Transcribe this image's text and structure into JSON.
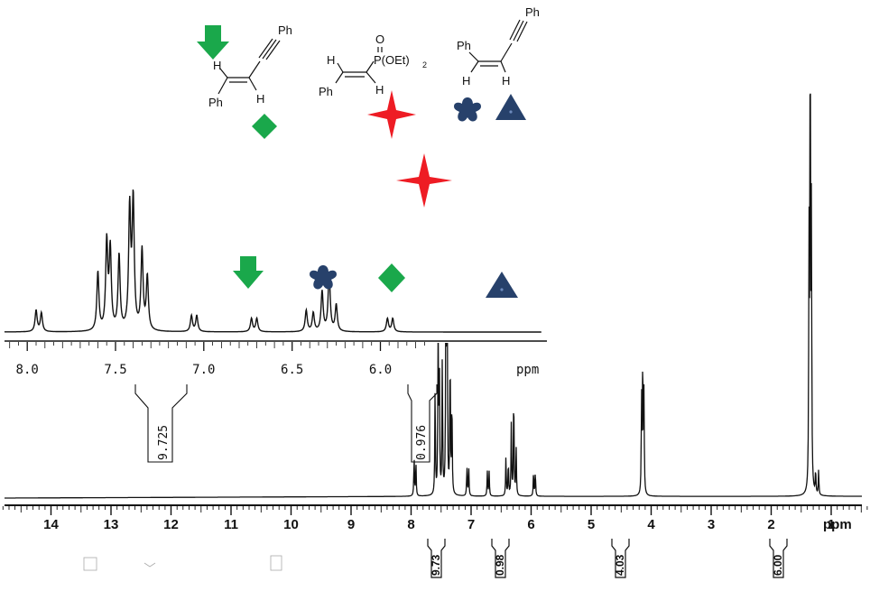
{
  "chart_data": [
    {
      "type": "line",
      "title": "",
      "xlabel": "ppm",
      "ylabel": "",
      "x_reversed": true,
      "xlim": [
        14.9,
        0.1
      ],
      "ticks": [
        "14",
        "13",
        "12",
        "11",
        "10",
        "9",
        "8",
        "7",
        "6",
        "5",
        "4",
        "3",
        "2",
        "1"
      ],
      "unit_label": "ppm",
      "peaks": [
        {
          "ppm": 7.95,
          "height": 0.08
        },
        {
          "ppm": 7.92,
          "height": 0.07
        },
        {
          "ppm": 7.6,
          "height": 0.22
        },
        {
          "ppm": 7.55,
          "height": 0.33
        },
        {
          "ppm": 7.53,
          "height": 0.3
        },
        {
          "ppm": 7.48,
          "height": 0.28
        },
        {
          "ppm": 7.42,
          "height": 0.45
        },
        {
          "ppm": 7.4,
          "height": 0.48
        },
        {
          "ppm": 7.35,
          "height": 0.3
        },
        {
          "ppm": 7.32,
          "height": 0.2
        },
        {
          "ppm": 7.07,
          "height": 0.06
        },
        {
          "ppm": 7.04,
          "height": 0.06
        },
        {
          "ppm": 6.73,
          "height": 0.05
        },
        {
          "ppm": 6.7,
          "height": 0.05
        },
        {
          "ppm": 6.42,
          "height": 0.08
        },
        {
          "ppm": 6.38,
          "height": 0.07
        },
        {
          "ppm": 6.33,
          "height": 0.15
        },
        {
          "ppm": 6.29,
          "height": 0.22
        },
        {
          "ppm": 6.25,
          "height": 0.1
        },
        {
          "ppm": 5.96,
          "height": 0.05
        },
        {
          "ppm": 5.93,
          "height": 0.05
        },
        {
          "ppm": 4.16,
          "height": 0.2
        },
        {
          "ppm": 4.14,
          "height": 0.28
        },
        {
          "ppm": 4.12,
          "height": 0.2
        },
        {
          "ppm": 1.37,
          "height": 0.5
        },
        {
          "ppm": 1.35,
          "height": 1.0
        },
        {
          "ppm": 1.33,
          "height": 0.55
        },
        {
          "ppm": 1.26,
          "height": 0.05
        },
        {
          "ppm": 1.21,
          "height": 0.05
        }
      ],
      "integrations": [
        {
          "label": "9.73",
          "ppm": 7.4
        },
        {
          "label": "0.98",
          "ppm": 6.3
        },
        {
          "label": "4.03",
          "ppm": 4.14
        },
        {
          "label": "6.00",
          "ppm": 1.35
        }
      ]
    },
    {
      "type": "line",
      "title": "",
      "xlabel": "ppm",
      "ylabel": "",
      "x_reversed": true,
      "xlim": [
        8.1,
        5.7
      ],
      "ticks": [
        "8.0",
        "7.5",
        "7.0",
        "6.5",
        "6.0"
      ],
      "unit_label": "ppm",
      "integrations": [
        {
          "label": "9.725",
          "ppm": 7.4
        },
        {
          "label": "0.976",
          "ppm": 6.3
        }
      ]
    }
  ],
  "structures": {
    "ph": "Ph",
    "h": "H",
    "o": "O",
    "p_oet": "P(OEt)",
    "sub2": "2"
  },
  "colors": {
    "green": "#1aa84b",
    "red": "#ee1c24",
    "navy": "#27416b",
    "black": "#111111"
  },
  "markers": [
    "green-arrow-icon",
    "green-diamond-icon",
    "red-star-icon",
    "navy-flower-icon",
    "navy-triangle-icon"
  ]
}
